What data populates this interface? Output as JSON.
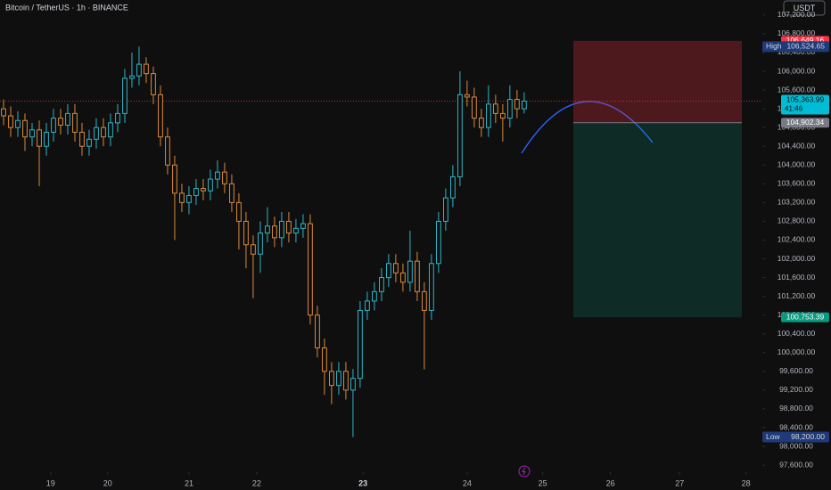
{
  "chart_data": {
    "type": "candlestick",
    "title": "Bitcoin / TetherUS · 1h · BINANCE",
    "currency": "USDT",
    "up_color": "#2fb5c7",
    "down_color": "#d98a3a",
    "x": [
      0,
      1,
      2,
      3,
      4,
      5,
      6,
      7,
      8,
      9,
      10,
      11,
      12,
      13,
      14,
      15,
      16,
      17,
      18,
      19,
      20,
      21,
      22,
      23,
      24,
      25,
      26,
      27,
      28,
      29,
      30,
      31,
      32,
      33,
      34,
      35,
      36,
      37,
      38,
      39,
      40,
      41,
      42,
      43,
      44,
      45,
      46,
      47,
      48,
      49,
      50,
      51,
      52,
      53,
      54,
      55,
      56,
      57,
      58,
      59,
      60,
      61,
      62,
      63,
      64,
      65,
      66,
      67,
      68,
      69,
      70,
      71,
      72,
      73
    ],
    "open": [
      105200,
      105050,
      104800,
      104950,
      104600,
      104750,
      104400,
      104700,
      105000,
      104850,
      105100,
      104700,
      104400,
      104550,
      104800,
      104600,
      104900,
      105100,
      105850,
      105900,
      106150,
      105950,
      105500,
      104600,
      104000,
      103400,
      103200,
      103350,
      103500,
      103450,
      103700,
      103850,
      103600,
      103200,
      102800,
      102300,
      102100,
      102550,
      102700,
      102450,
      102800,
      102550,
      102650,
      102750,
      100800,
      100100,
      99600,
      99300,
      99600,
      99200,
      99450,
      100900,
      101100,
      101300,
      101600,
      101900,
      101700,
      101500,
      101950,
      101300,
      100900,
      101900,
      102800,
      103300,
      103750,
      105500,
      105450,
      105000,
      104800,
      105300,
      105100,
      105000,
      105400,
      105200
    ],
    "high": [
      105400,
      105250,
      105150,
      105100,
      104900,
      104950,
      104900,
      105200,
      105200,
      105300,
      105300,
      104900,
      104750,
      105000,
      105000,
      105100,
      105300,
      106050,
      106400,
      106525,
      106300,
      106100,
      105700,
      104800,
      104200,
      103600,
      103550,
      103700,
      103700,
      103900,
      104100,
      104050,
      103800,
      103400,
      103000,
      102500,
      102800,
      103100,
      102900,
      103000,
      103000,
      102850,
      102950,
      102950,
      101000,
      100300,
      99800,
      99800,
      99800,
      99650,
      101100,
      101300,
      101500,
      101800,
      102100,
      102100,
      101900,
      102600,
      102150,
      101500,
      102100,
      103000,
      103500,
      104000,
      106000,
      105800,
      105650,
      105200,
      105700,
      105500,
      105300,
      105700,
      105600,
      105550
    ],
    "low": [
      104850,
      104600,
      104600,
      104300,
      104400,
      103550,
      104200,
      104500,
      104650,
      104650,
      104500,
      104200,
      104200,
      104350,
      104400,
      104400,
      104700,
      104900,
      105650,
      105700,
      105750,
      105300,
      104400,
      103800,
      102400,
      103000,
      102950,
      103150,
      103250,
      103250,
      103500,
      103400,
      103000,
      102200,
      101800,
      101160,
      101700,
      102350,
      102250,
      102250,
      102350,
      102350,
      102450,
      100600,
      99900,
      99100,
      98900,
      99100,
      99000,
      98200,
      99250,
      100700,
      100900,
      101100,
      101400,
      101500,
      101300,
      101300,
      101100,
      99640,
      100700,
      101700,
      102600,
      103100,
      103550,
      105250,
      104800,
      104600,
      104600,
      104900,
      104500,
      104800,
      105000,
      105100
    ],
    "close": [
      105050,
      104800,
      104950,
      104600,
      104750,
      104400,
      104700,
      105000,
      104850,
      105100,
      104700,
      104400,
      104550,
      104800,
      104600,
      104900,
      105100,
      105850,
      105900,
      106150,
      105950,
      105500,
      104600,
      104000,
      103400,
      103200,
      103350,
      103500,
      103450,
      103700,
      103850,
      103600,
      103200,
      102800,
      102300,
      102100,
      102550,
      102700,
      102450,
      102800,
      102550,
      102650,
      102750,
      100800,
      100100,
      99600,
      99300,
      99600,
      99200,
      99450,
      100900,
      101100,
      101300,
      101600,
      101900,
      101700,
      101500,
      101950,
      101300,
      100900,
      101900,
      102800,
      103300,
      103750,
      105500,
      105450,
      105000,
      104800,
      105300,
      105100,
      105000,
      105400,
      105200,
      105364
    ],
    "xlim": [
      -0.5,
      106.4
    ],
    "xticks": [
      {
        "value": 6.6,
        "label": "19"
      },
      {
        "value": 14.6,
        "label": "20"
      },
      {
        "value": 26,
        "label": "21"
      },
      {
        "value": 35.5,
        "label": "22"
      },
      {
        "value": 50.4,
        "label": "23"
      },
      {
        "value": 65,
        "label": "24"
      },
      {
        "value": 75.6,
        "label": "25"
      },
      {
        "value": 85.1,
        "label": "26"
      },
      {
        "value": 94.8,
        "label": "27"
      },
      {
        "value": 104.1,
        "label": "28"
      }
    ],
    "ylim": [
      97450,
      107520
    ],
    "yticks": [
      {
        "value": 97600,
        "label": "97,600.00"
      },
      {
        "value": 98000,
        "label": "98,000.00"
      },
      {
        "value": 98400,
        "label": "98,400.00"
      },
      {
        "value": 98800,
        "label": "98,800.00"
      },
      {
        "value": 99200,
        "label": "99,200.00"
      },
      {
        "value": 99600,
        "label": "99,600.00"
      },
      {
        "value": 100000,
        "label": "100,000.00"
      },
      {
        "value": 100400,
        "label": "100,400.00"
      },
      {
        "value": 100800,
        "label": "100,800.00"
      },
      {
        "value": 101200,
        "label": "101,200.00"
      },
      {
        "value": 101600,
        "label": "101,600.00"
      },
      {
        "value": 102000,
        "label": "102,000.00"
      },
      {
        "value": 102400,
        "label": "102,400.00"
      },
      {
        "value": 102800,
        "label": "102,800.00"
      },
      {
        "value": 103200,
        "label": "103,200.00"
      },
      {
        "value": 103600,
        "label": "103,600.00"
      },
      {
        "value": 104000,
        "label": "104,000.00"
      },
      {
        "value": 104400,
        "label": "104,400.00"
      },
      {
        "value": 104800,
        "label": "104,800.00"
      },
      {
        "value": 105200,
        "label": "105,200.00"
      },
      {
        "value": 105600,
        "label": "105,600.00"
      },
      {
        "value": 106000,
        "label": "106,000.00"
      },
      {
        "value": 106400,
        "label": "106,400.00"
      },
      {
        "value": 106800,
        "label": "106,800.00"
      },
      {
        "value": 107200,
        "label": "107,200.00"
      }
    ],
    "grid": false,
    "position": {
      "stop": {
        "value": 106649.16,
        "label": "106,649.16",
        "color": "#f23645"
      },
      "entry": {
        "value": 104902.34,
        "label": "104,902.34",
        "color": "#787b86"
      },
      "target": {
        "value": 100753.39,
        "label": "100,753.39",
        "color": "#089981"
      }
    },
    "last_price": {
      "value": 105363.99,
      "label": "105,363.99",
      "countdown": "41:46",
      "color": "#00bcd4"
    },
    "high_marker": {
      "name": "High",
      "value": 106524.65,
      "label": "106,524.65"
    },
    "low_marker": {
      "name": "Low",
      "value": 98200,
      "label": "98,200.00"
    }
  }
}
